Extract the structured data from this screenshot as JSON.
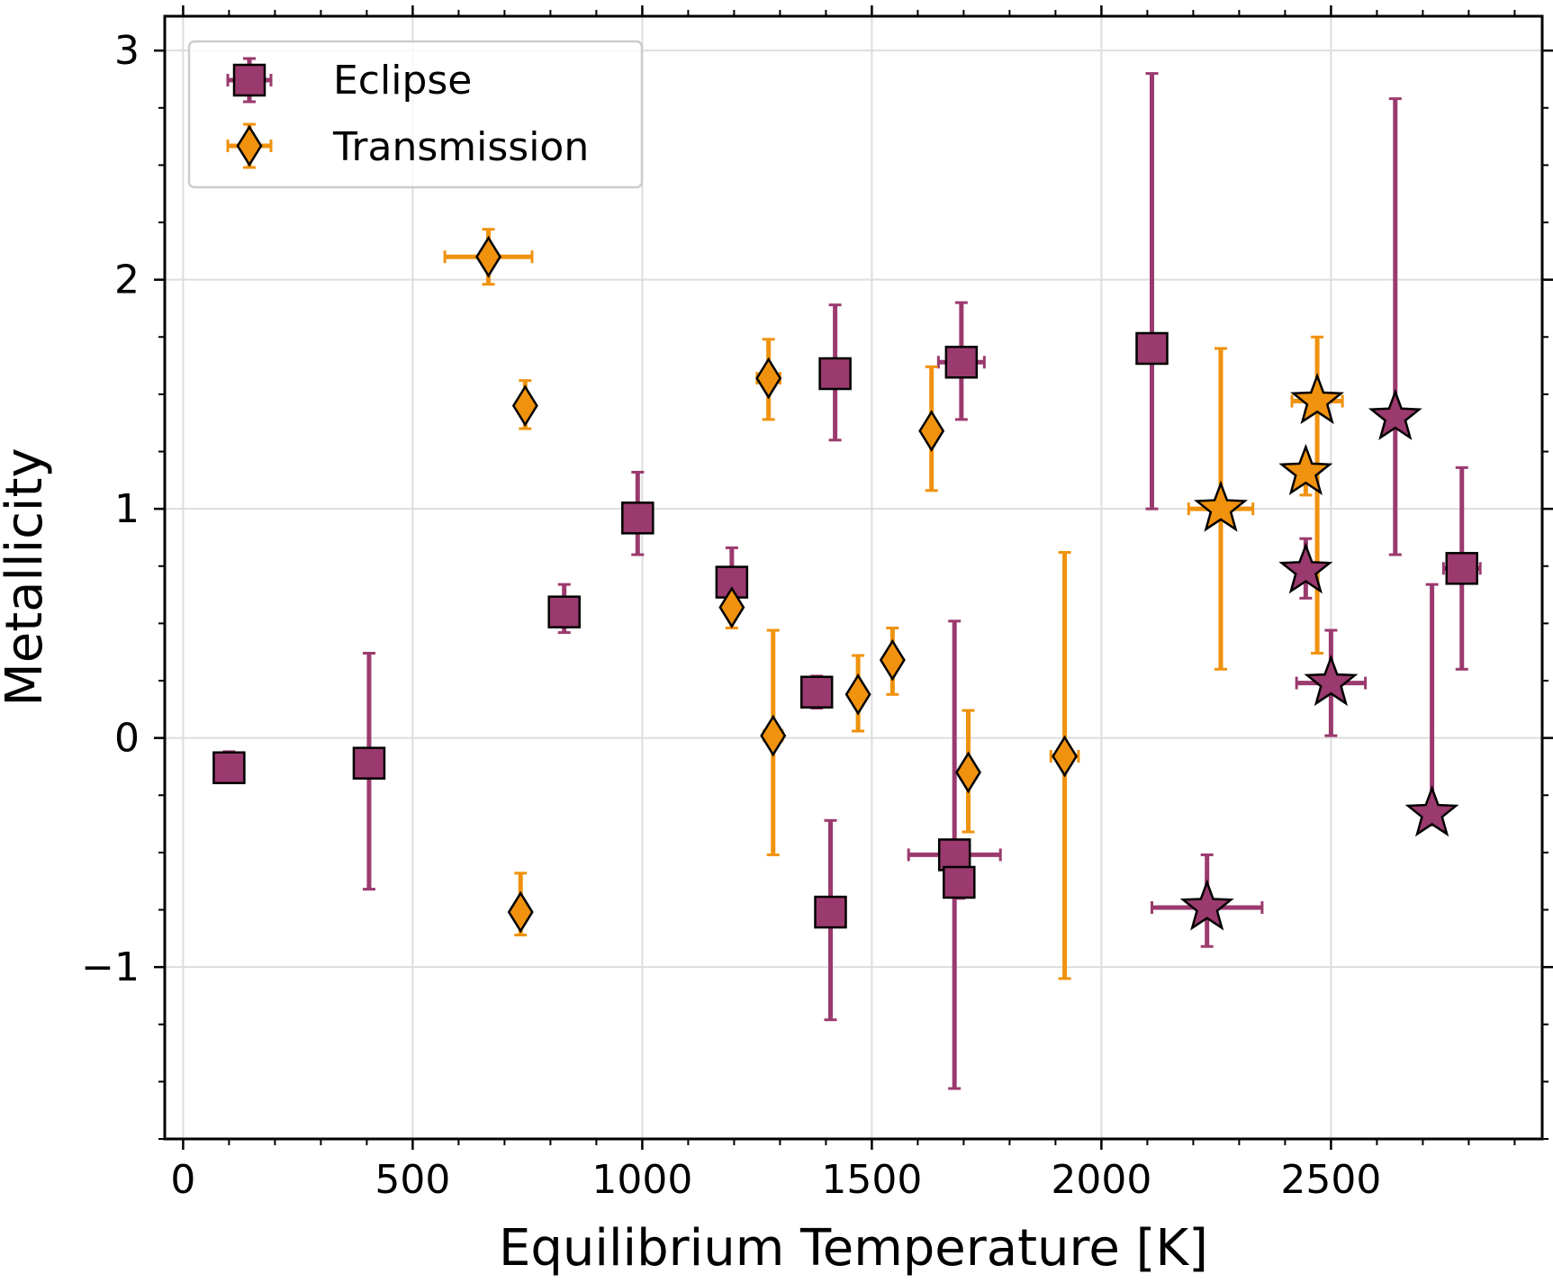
{
  "chart_data": {
    "type": "scatter",
    "title": "",
    "xlabel": "Equilibrium Temperature [K]",
    "ylabel": "Metallicity",
    "xlim": [
      -40,
      2960
    ],
    "ylim": [
      -1.75,
      3.15
    ],
    "xticks": [
      0,
      500,
      1000,
      1500,
      2000,
      2500
    ],
    "xtick_labels": [
      "0",
      "500",
      "1000",
      "1500",
      "2000",
      "2500"
    ],
    "yticks": [
      -1,
      0,
      1,
      2,
      3
    ],
    "ytick_labels": [
      "−1",
      "0",
      "1",
      "2",
      "3"
    ],
    "grid": true,
    "legend_position": "top-left",
    "colors": {
      "eclipse": "#9b3a6e",
      "transmission": "#f0920e",
      "grid": "#dddddd"
    },
    "series": [
      {
        "name": "Eclipse",
        "legend_label": "Eclipse",
        "color": "#9b3a6e",
        "marker": "square",
        "points": [
          {
            "x": 100,
            "y": -0.13,
            "yerr": [
              0.06,
              0.07
            ],
            "xerr": 0,
            "marker": "square"
          },
          {
            "x": 405,
            "y": -0.11,
            "yerr": [
              0.55,
              0.48
            ],
            "xerr": 0,
            "marker": "square"
          },
          {
            "x": 830,
            "y": 0.55,
            "yerr": [
              0.09,
              0.12
            ],
            "xerr": 0,
            "marker": "square"
          },
          {
            "x": 990,
            "y": 0.96,
            "yerr": [
              0.16,
              0.2
            ],
            "xerr": 0,
            "marker": "square"
          },
          {
            "x": 1195,
            "y": 0.68,
            "yerr": [
              0.1,
              0.15
            ],
            "xerr": 0,
            "marker": "square"
          },
          {
            "x": 1380,
            "y": 0.2,
            "yerr": [
              0.07,
              0.07
            ],
            "xerr": 0,
            "marker": "square"
          },
          {
            "x": 1420,
            "y": 1.59,
            "yerr": [
              0.29,
              0.3
            ],
            "xerr": 0,
            "marker": "square"
          },
          {
            "x": 1410,
            "y": -0.76,
            "yerr": [
              0.47,
              0.4
            ],
            "xerr": 0,
            "marker": "square"
          },
          {
            "x": 1695,
            "y": 1.64,
            "yerr": [
              0.25,
              0.26
            ],
            "xerr": 50,
            "marker": "square"
          },
          {
            "x": 1680,
            "y": -0.51,
            "yerr": [
              1.02,
              1.02
            ],
            "xerr": 100,
            "marker": "square"
          },
          {
            "x": 1690,
            "y": -0.63,
            "yerr": [
              0.07,
              0.07
            ],
            "xerr": 0,
            "marker": "square"
          },
          {
            "x": 2110,
            "y": 1.7,
            "yerr": [
              0.7,
              1.2
            ],
            "xerr": 0,
            "marker": "square"
          },
          {
            "x": 2785,
            "y": 0.74,
            "yerr": [
              0.44,
              0.44
            ],
            "xerr": 40,
            "marker": "square"
          },
          {
            "x": 2445,
            "y": 0.73,
            "yerr": [
              0.12,
              0.14
            ],
            "xerr": 0,
            "marker": "star"
          },
          {
            "x": 2500,
            "y": 0.24,
            "yerr": [
              0.23,
              0.23
            ],
            "xerr": 75,
            "marker": "star"
          },
          {
            "x": 2640,
            "y": 1.4,
            "yerr": [
              0.6,
              1.39
            ],
            "xerr": 0,
            "marker": "star"
          },
          {
            "x": 2720,
            "y": -0.33,
            "yerr": [
              0.05,
              1.0
            ],
            "xerr": 0,
            "marker": "star"
          },
          {
            "x": 2230,
            "y": -0.74,
            "yerr": [
              0.17,
              0.23
            ],
            "xerr": 120,
            "marker": "star"
          }
        ]
      },
      {
        "name": "Transmission",
        "legend_label": "Transmission",
        "color": "#f0920e",
        "marker": "diamond",
        "points": [
          {
            "x": 665,
            "y": 2.1,
            "yerr": [
              0.12,
              0.12
            ],
            "xerr": 95,
            "marker": "diamond"
          },
          {
            "x": 745,
            "y": 1.45,
            "yerr": [
              0.1,
              0.11
            ],
            "xerr": 0,
            "marker": "diamond"
          },
          {
            "x": 735,
            "y": -0.76,
            "yerr": [
              0.1,
              0.17
            ],
            "xerr": 0,
            "marker": "diamond"
          },
          {
            "x": 1195,
            "y": 0.57,
            "yerr": [
              0.09,
              0.1
            ],
            "xerr": 0,
            "marker": "diamond"
          },
          {
            "x": 1275,
            "y": 1.57,
            "yerr": [
              0.18,
              0.17
            ],
            "xerr": 25,
            "marker": "diamond"
          },
          {
            "x": 1285,
            "y": 0.01,
            "yerr": [
              0.52,
              0.46
            ],
            "xerr": 20,
            "marker": "diamond"
          },
          {
            "x": 1470,
            "y": 0.19,
            "yerr": [
              0.16,
              0.17
            ],
            "xerr": 0,
            "marker": "diamond"
          },
          {
            "x": 1545,
            "y": 0.34,
            "yerr": [
              0.15,
              0.14
            ],
            "xerr": 0,
            "marker": "diamond"
          },
          {
            "x": 1630,
            "y": 1.34,
            "yerr": [
              0.26,
              0.28
            ],
            "xerr": 0,
            "marker": "diamond"
          },
          {
            "x": 1710,
            "y": -0.15,
            "yerr": [
              0.26,
              0.27
            ],
            "xerr": 0,
            "marker": "diamond"
          },
          {
            "x": 1920,
            "y": -0.08,
            "yerr": [
              0.97,
              0.89
            ],
            "xerr": 30,
            "marker": "diamond"
          },
          {
            "x": 2260,
            "y": 1.0,
            "yerr": [
              0.7,
              0.7
            ],
            "xerr": 70,
            "marker": "star"
          },
          {
            "x": 2445,
            "y": 1.16,
            "yerr": [
              0.1,
              0.0
            ],
            "xerr": 0,
            "marker": "star"
          },
          {
            "x": 2470,
            "y": 1.47,
            "yerr": [
              1.1,
              0.28
            ],
            "xerr": 55,
            "marker": "star"
          }
        ]
      }
    ]
  }
}
